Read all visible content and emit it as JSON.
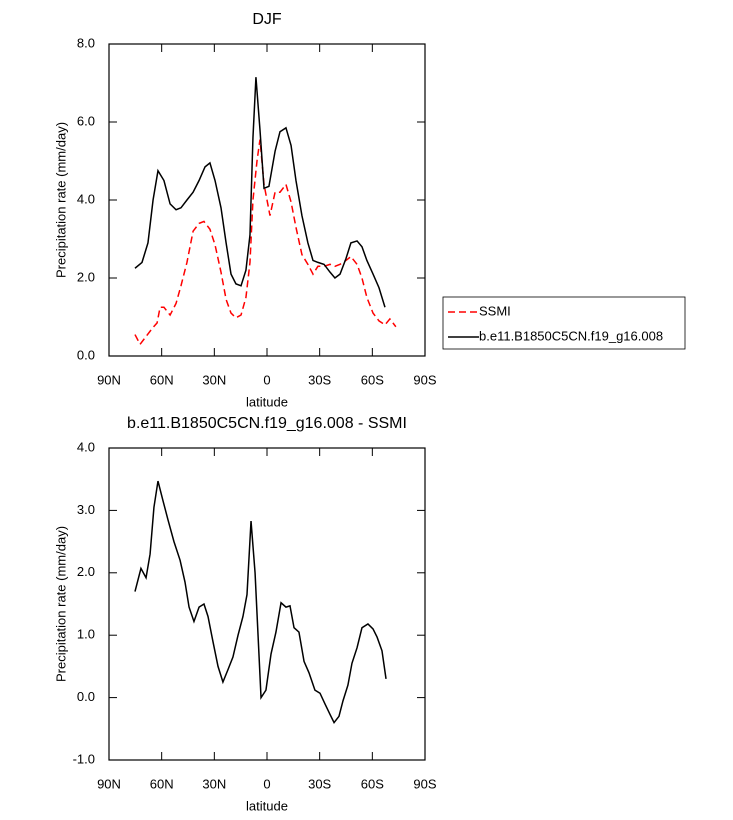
{
  "chart_data": [
    {
      "type": "line",
      "title": "DJF",
      "xlabel": "latitude",
      "ylabel": "Precipitation rate (mm/day)",
      "xlim": [
        90,
        -90
      ],
      "xticks": [
        {
          "value": 90,
          "label": "90N"
        },
        {
          "value": 60,
          "label": "60N"
        },
        {
          "value": 30,
          "label": "30N"
        },
        0,
        {
          "value": -30,
          "label": "30S"
        },
        {
          "value": -60,
          "label": "60S"
        },
        {
          "value": -90,
          "label": "90S"
        }
      ],
      "ylim": [
        0,
        8
      ],
      "yticks": [
        {
          "value": 0,
          "label": "0.0"
        },
        {
          "value": 2,
          "label": "2.0"
        },
        {
          "value": 4,
          "label": "4.0"
        },
        {
          "value": 6,
          "label": "6.0"
        },
        {
          "value": 8,
          "label": "8.0"
        }
      ],
      "legend": "outside-right",
      "series": [
        {
          "name": "SSMI",
          "color": "#ff0000",
          "dash": true,
          "x": [
            75.2,
            72.3,
            68.9,
            65.5,
            62.6,
            60.9,
            58.7,
            55.2,
            51.8,
            49.0,
            45.6,
            42.1,
            38.7,
            35.9,
            32.5,
            29.6,
            26.2,
            23.3,
            20.5,
            17.7,
            14.8,
            12.0,
            9.7,
            8.0,
            5.7,
            4.0,
            1.7,
            -1.7,
            -4.6,
            -7.4,
            -10.8,
            -13.7,
            -16.5,
            -19.9,
            -23.3,
            -26.2,
            -29.0,
            -32.5,
            -35.9,
            -38.7,
            -41.6,
            -45.0,
            -47.8,
            -51.3,
            -54.1,
            -56.9,
            -60.4,
            -63.8,
            -67.2,
            -70.0,
            -73.4
          ],
          "values": [
            0.55,
            0.3,
            0.5,
            0.7,
            0.85,
            1.25,
            1.25,
            1.05,
            1.35,
            1.8,
            2.4,
            3.2,
            3.4,
            3.45,
            3.25,
            2.85,
            2.15,
            1.45,
            1.1,
            0.98,
            1.05,
            1.5,
            2.4,
            4.0,
            5.0,
            5.55,
            4.4,
            3.6,
            4.2,
            4.2,
            4.4,
            3.95,
            3.3,
            2.6,
            2.35,
            2.1,
            2.3,
            2.3,
            2.35,
            2.3,
            2.35,
            2.45,
            2.55,
            2.35,
            2.0,
            1.5,
            1.1,
            0.9,
            0.8,
            0.95,
            0.75
          ]
        },
        {
          "name": "b.e11.B1850C5CN.f19_g16.008",
          "color": "#000000",
          "dash": false,
          "x": [
            75.2,
            71.2,
            67.8,
            64.9,
            62.1,
            58.7,
            55.2,
            51.8,
            49.0,
            45.6,
            42.1,
            38.7,
            35.3,
            32.5,
            29.6,
            26.2,
            23.3,
            20.5,
            17.7,
            14.8,
            12.0,
            9.7,
            8.0,
            6.3,
            4.0,
            1.7,
            -1.1,
            -4.6,
            -7.4,
            -10.8,
            -13.7,
            -16.5,
            -19.9,
            -23.3,
            -26.2,
            -29.0,
            -32.5,
            -35.9,
            -38.7,
            -41.6,
            -45.0,
            -47.8,
            -51.3,
            -54.1,
            -56.9,
            -60.4,
            -63.8,
            -67.2
          ],
          "values": [
            2.25,
            2.4,
            2.9,
            4.0,
            4.75,
            4.5,
            3.9,
            3.75,
            3.8,
            4.0,
            4.2,
            4.5,
            4.85,
            4.95,
            4.5,
            3.8,
            2.9,
            2.1,
            1.85,
            1.8,
            2.2,
            3.1,
            5.6,
            7.15,
            5.8,
            4.3,
            4.35,
            5.25,
            5.75,
            5.85,
            5.4,
            4.5,
            3.6,
            2.9,
            2.45,
            2.4,
            2.35,
            2.15,
            2.0,
            2.1,
            2.5,
            2.9,
            2.95,
            2.8,
            2.45,
            2.1,
            1.75,
            1.25
          ]
        }
      ]
    },
    {
      "type": "line",
      "title": "b.e11.B1850C5CN.f19_g16.008 - SSMI",
      "xlabel": "latitude",
      "ylabel": "Precipitation rate (mm/day)",
      "xlim": [
        90,
        -90
      ],
      "xticks": [
        {
          "value": 90,
          "label": "90N"
        },
        {
          "value": 60,
          "label": "60N"
        },
        {
          "value": 30,
          "label": "30N"
        },
        0,
        {
          "value": -30,
          "label": "30S"
        },
        {
          "value": -60,
          "label": "60S"
        },
        {
          "value": -90,
          "label": "90S"
        }
      ],
      "ylim": [
        -1,
        4
      ],
      "yticks": [
        {
          "value": -1,
          "label": "-1.0"
        },
        {
          "value": 0,
          "label": "0.0"
        },
        {
          "value": 1,
          "label": "1.0"
        },
        {
          "value": 2,
          "label": "2.0"
        },
        {
          "value": 3,
          "label": "3.0"
        },
        {
          "value": 4,
          "label": "4.0"
        }
      ],
      "series": [
        {
          "color": "#000000",
          "dash": false,
          "x": [
            75.2,
            71.8,
            68.9,
            66.6,
            64.4,
            62.1,
            59.2,
            56.4,
            53.0,
            49.5,
            46.7,
            44.4,
            41.6,
            38.7,
            35.9,
            33.6,
            30.8,
            27.9,
            25.1,
            22.2,
            19.4,
            16.5,
            13.7,
            11.4,
            9.1,
            6.8,
            3.4,
            0.6,
            -2.3,
            -5.1,
            -8.0,
            -10.8,
            -13.1,
            -15.4,
            -18.2,
            -21.1,
            -23.9,
            -27.3,
            -30.2,
            -33.0,
            -35.9,
            -38.2,
            -41.0,
            -43.3,
            -46.1,
            -48.4,
            -51.3,
            -54.1,
            -57.5,
            -60.4,
            -62.7,
            -65.5,
            -67.8
          ],
          "values": [
            1.7,
            2.07,
            1.92,
            2.3,
            3.05,
            3.47,
            3.15,
            2.85,
            2.5,
            2.2,
            1.85,
            1.45,
            1.22,
            1.45,
            1.5,
            1.3,
            0.9,
            0.5,
            0.25,
            0.45,
            0.65,
            1.0,
            1.3,
            1.65,
            2.83,
            2.0,
            0.0,
            0.12,
            0.7,
            1.05,
            1.52,
            1.45,
            1.47,
            1.12,
            1.05,
            0.58,
            0.4,
            0.12,
            0.07,
            -0.1,
            -0.27,
            -0.4,
            -0.3,
            -0.05,
            0.2,
            0.55,
            0.8,
            1.12,
            1.18,
            1.1,
            0.97,
            0.75,
            0.3
          ]
        }
      ]
    }
  ]
}
